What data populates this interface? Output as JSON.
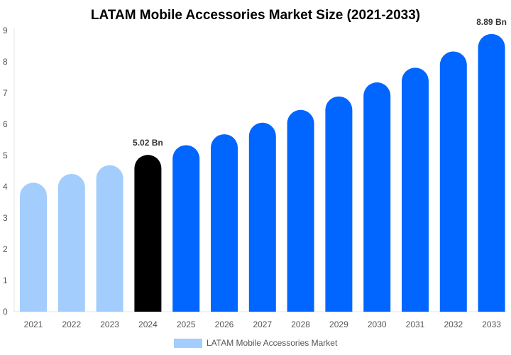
{
  "chart_data": {
    "type": "bar",
    "title": "LATAM Mobile Accessories Market Size (2021-2033)",
    "categories": [
      "2021",
      "2022",
      "2023",
      "2024",
      "2025",
      "2026",
      "2027",
      "2028",
      "2029",
      "2030",
      "2031",
      "2032",
      "2033"
    ],
    "series": [
      {
        "name": "LATAM Mobile Accessories Market",
        "values": [
          4.13,
          4.41,
          4.69,
          5.02,
          5.33,
          5.68,
          6.05,
          6.46,
          6.89,
          7.34,
          7.81,
          8.33,
          8.89
        ]
      }
    ],
    "data_labels": {
      "3": "5.02 Bn",
      "12": "8.89 Bn"
    },
    "ylim": [
      0,
      9
    ],
    "yticks": [
      0,
      1,
      2,
      3,
      4,
      5,
      6,
      7,
      8,
      9
    ],
    "grid": false,
    "legend_position": "bottom",
    "colors": {
      "historical": "#a3cdfc",
      "base_year": "#000000",
      "forecast": "#0066ff"
    }
  }
}
